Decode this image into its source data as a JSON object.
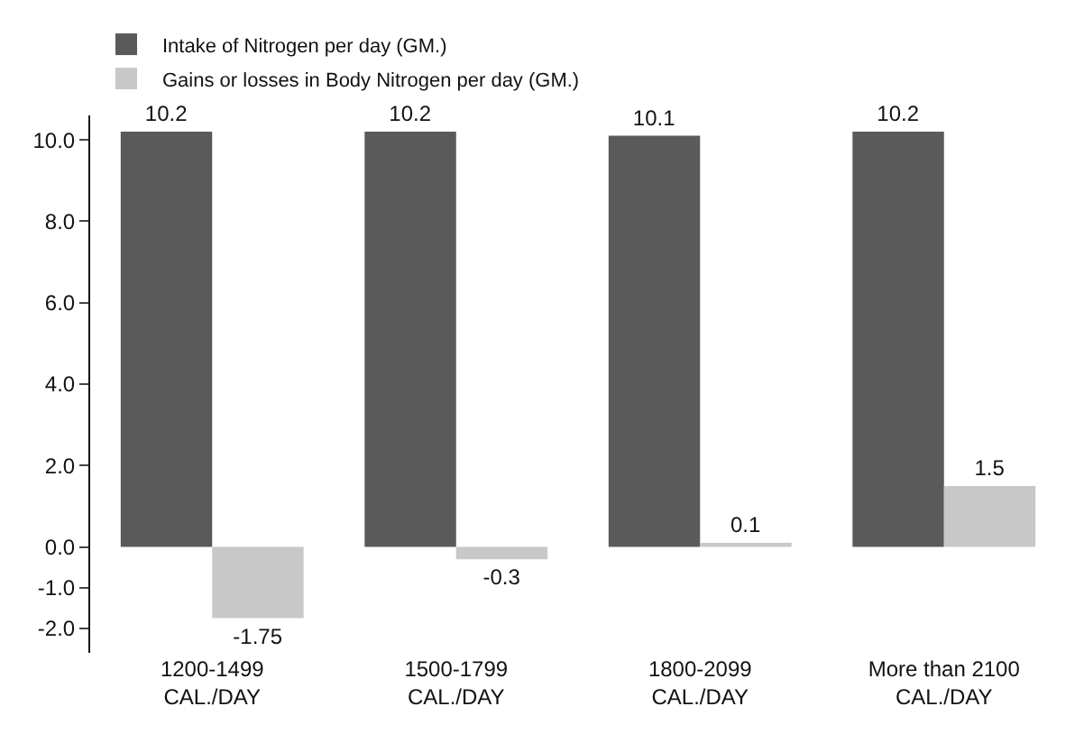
{
  "chart_data": {
    "type": "bar",
    "categories": [
      "1200-1499\nCAL./DAY",
      "1500-1799\nCAL./DAY",
      "1800-2099\nCAL./DAY",
      "More than 2100\nCAL./DAY"
    ],
    "series": [
      {
        "name": "Intake of Nitrogen per day (GM.)",
        "color": "#5a5a5a",
        "values": [
          10.2,
          10.2,
          10.1,
          10.2
        ],
        "value_labels": [
          "10.2",
          "10.2",
          "10.1",
          "10.2"
        ]
      },
      {
        "name": "Gains or losses in Body Nitrogen per day (GM.)",
        "color": "#c8c8c8",
        "values": [
          -1.75,
          -0.3,
          0.1,
          1.5
        ],
        "value_labels": [
          "-1.75",
          "-0.3",
          "0.1",
          "1.5"
        ]
      }
    ],
    "ylim": [
      -2.6,
      10.6
    ],
    "yticks": [
      {
        "value": -2,
        "label": "-2.0"
      },
      {
        "value": -1,
        "label": "-1.0"
      },
      {
        "value": 0,
        "label": "0.0"
      },
      {
        "value": 2,
        "label": "2.0"
      },
      {
        "value": 4,
        "label": "4.0"
      },
      {
        "value": 6,
        "label": "6.0"
      },
      {
        "value": 8,
        "label": "8.0"
      },
      {
        "value": 10,
        "label": "10.0"
      }
    ],
    "legend": "top left"
  }
}
